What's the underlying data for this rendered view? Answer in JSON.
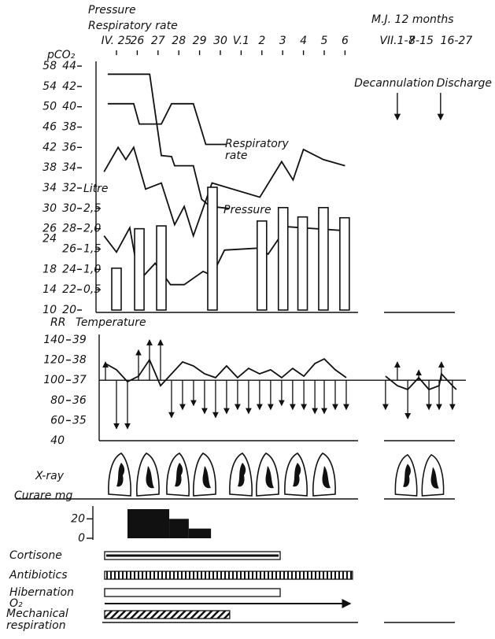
{
  "chart_data": [
    {
      "type": "line",
      "title": "M.J. 12 months",
      "header": [
        "Pressure",
        "Respiratory rate"
      ],
      "y_label": "pCO₂",
      "y3_label": "Litre",
      "xlim": [
        -0.6,
        16.9
      ],
      "xticks": [
        {
          "value": 0,
          "label": "IV. 25"
        },
        {
          "value": 1,
          "label": "26"
        },
        {
          "value": 2,
          "label": "27"
        },
        {
          "value": 3,
          "label": "28"
        },
        {
          "value": 4,
          "label": "29"
        },
        {
          "value": 5,
          "label": "30"
        },
        {
          "value": 6,
          "label": "V.1"
        },
        {
          "value": 7,
          "label": "2"
        },
        {
          "value": 8,
          "label": "3"
        },
        {
          "value": 9,
          "label": "4"
        },
        {
          "value": 10,
          "label": "5"
        },
        {
          "value": 11,
          "label": "6"
        },
        {
          "value": 13.52,
          "label": "VII.1-7"
        },
        {
          "value": 14.66,
          "label": "8-15"
        },
        {
          "value": 16.36,
          "label": "16-27"
        }
      ],
      "ylim": [
        20,
        44
      ],
      "yticks": [
        44,
        42,
        40,
        38,
        36,
        34,
        32,
        30,
        28,
        26,
        24,
        22,
        20
      ],
      "y2lim": [
        10,
        58
      ],
      "y2ticks": [
        58,
        54,
        50,
        46,
        42,
        38,
        34,
        30,
        26,
        24,
        18,
        14,
        10
      ],
      "y3lim": [
        0,
        6
      ],
      "y3ticks": [
        {
          "value": 0.5,
          "label": "0,5"
        },
        {
          "value": 1.0,
          "label": "1,0"
        },
        {
          "value": 1.5,
          "label": "1,5"
        },
        {
          "value": 2.0,
          "label": "2,0"
        },
        {
          "value": 2.5,
          "label": "2,5"
        }
      ],
      "series": [
        {
          "name": "Respiratory rate",
          "color": "#111",
          "x": [
            -0.42,
            0.83,
            1.1,
            2.16,
            2.65,
            3.7,
            4.3,
            5.3
          ],
          "values": [
            40.3,
            40.3,
            38.3,
            38.3,
            40.3,
            40.3,
            36.3,
            36.3
          ]
        },
        {
          "name": "Pressure",
          "color": "#111",
          "x": [
            -0.42,
            1.6,
            2.16,
            2.65,
            2.8,
            3.7,
            4.1,
            4.5,
            5.4
          ],
          "values": [
            43.2,
            43.2,
            35.2,
            35.1,
            34.2,
            34.2,
            30.9,
            30.2,
            30.0
          ]
        },
        {
          "color": "#111",
          "x": [
            -0.6,
            0.08,
            0.45,
            0.83,
            1.4,
            2.16,
            2.8,
            3.26,
            3.7,
            4.6,
            6.9,
            7.95,
            8.5,
            9.0,
            9.96,
            11.0
          ],
          "values": [
            33.6,
            36.0,
            34.8,
            36.0,
            31.9,
            32.5,
            28.4,
            30.2,
            27.3,
            32.5,
            31.1,
            34.6,
            32.8,
            35.8,
            34.8,
            34.2
          ]
        },
        {
          "color": "#111",
          "x": [
            -0.6,
            0,
            0.64,
            1.1,
            1.86,
            2.6,
            3.26,
            4.17,
            4.6,
            5.2,
            6.9,
            7.3,
            8.2,
            11.1
          ],
          "values": [
            27.3,
            25.7,
            28.1,
            22.9,
            24.6,
            22.5,
            22.5,
            23.8,
            23.4,
            25.9,
            26.1,
            25.5,
            28.2,
            27.8
          ]
        },
        {
          "type": "bar",
          "axis": "y3",
          "color": "#111",
          "x": [
            0,
            1.1,
            2.16,
            4.62,
            7.0,
            8.02,
            8.96,
            9.96,
            10.98
          ],
          "values": [
            1.03,
            2.0,
            2.07,
            3.02,
            2.19,
            2.52,
            2.29,
            2.52,
            2.27
          ]
        }
      ],
      "annotations": [
        {
          "text": "Decannulation",
          "x": 13.52
        },
        {
          "text": "Discharge",
          "x": 15.6
        }
      ]
    },
    {
      "type": "line",
      "y_label": "RR",
      "y2_label": "Temperature",
      "ylim": [
        40,
        140
      ],
      "yticks": [
        140,
        120,
        100,
        80,
        60,
        40
      ],
      "y2lim": [
        34,
        39
      ],
      "y2ticks": [
        39,
        38,
        37,
        36,
        35
      ],
      "reference": 100,
      "series": [
        {
          "axis": "y2",
          "color": "#111",
          "x": [
            -0.53,
            0,
            0.53,
            1.06,
            1.59,
            2.12,
            2.65,
            3.18,
            3.71,
            4.24,
            4.77,
            5.3,
            5.83,
            6.36,
            6.89,
            7.42,
            7.95,
            8.48,
            9.02,
            9.55,
            10.0,
            10.53,
            11.06,
            null,
            12.95,
            13.52,
            14.02,
            14.55,
            15.04,
            15.53,
            15.64,
            16.17,
            16.36
          ],
          "values": [
            37.83,
            37.52,
            36.93,
            37.2,
            38.02,
            36.73,
            37.32,
            37.91,
            37.71,
            37.32,
            37.13,
            37.71,
            37.13,
            37.59,
            37.32,
            37.52,
            37.13,
            37.59,
            37.2,
            37.83,
            38.06,
            37.52,
            37.13,
            null,
            37.2,
            36.73,
            36.54,
            37.13,
            36.54,
            36.73,
            37.32,
            36.73,
            36.54
          ]
        },
        {
          "type": "arrow",
          "color": "#111",
          "x": [
            -0.53,
            0,
            0.53,
            1.06,
            1.59,
            2.12,
            2.65,
            3.18,
            3.71,
            4.24,
            4.77,
            5.3,
            5.83,
            6.36,
            6.89,
            7.42,
            7.95,
            8.48,
            9.02,
            9.55,
            10.0,
            10.53,
            11.06,
            12.95,
            13.52,
            14.02,
            14.55,
            15.04,
            15.53,
            15.64,
            16.17
          ],
          "values": [
            118,
            52,
            52,
            130,
            140,
            140,
            63,
            71,
            75,
            67,
            63,
            67,
            71,
            67,
            71,
            71,
            75,
            71,
            71,
            67,
            67,
            71,
            71,
            71,
            118,
            62,
            110,
            71,
            71,
            118,
            71
          ]
        }
      ]
    },
    {
      "type": "histogram",
      "y_label": "Curare mg",
      "ylim": [
        0,
        30
      ],
      "yticks": [
        20,
        0
      ],
      "bins": [
        0.53,
        2.54,
        3.48,
        4.55
      ],
      "values": [
        30,
        20,
        10
      ],
      "color": "#111"
    },
    {
      "type": "gantt",
      "tasks": [
        {
          "name": "Cortisone",
          "start": -0.57,
          "end": 7.88,
          "style": "double"
        },
        {
          "name": "Antibiotics",
          "start": -0.57,
          "end": 11.36,
          "style": "striped"
        },
        {
          "name": "Hibernation",
          "start": -0.57,
          "end": 7.88,
          "style": "plain"
        },
        {
          "name": "O₂",
          "start": -0.57,
          "end": 11.25,
          "style": "arrow"
        },
        {
          "name": "Mechanical respiration",
          "start": -0.57,
          "end": 5.45,
          "style": "hatched"
        }
      ]
    }
  ],
  "xray": {
    "label": "X-ray"
  }
}
